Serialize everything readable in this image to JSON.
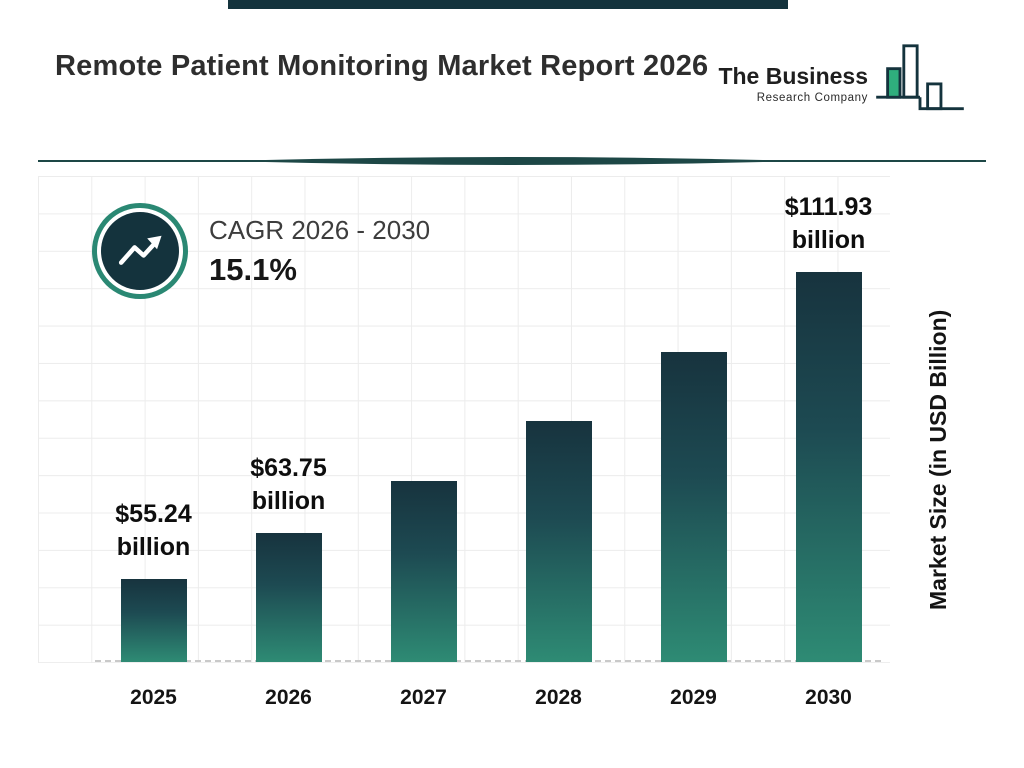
{
  "header": {
    "title": "Remote Patient Monitoring Market Report 2026"
  },
  "logo": {
    "line1": "The Business",
    "line2": "Research Company"
  },
  "cagr": {
    "label": "CAGR 2026 - 2030",
    "value": "15.1%"
  },
  "colors": {
    "navy": "#14333d",
    "teal": "#2a8873",
    "logo_green": "#2fae7d",
    "bar_gradient_top": "#17333e",
    "bar_gradient_bottom": "#2e8b74",
    "grid_line": "#ececec"
  },
  "chart_data": {
    "type": "bar",
    "title": "Remote Patient Monitoring Market Report 2026",
    "categories": [
      "2025",
      "2026",
      "2027",
      "2028",
      "2029",
      "2030"
    ],
    "values": [
      55.24,
      63.75,
      73.37,
      84.45,
      97.21,
      111.93
    ],
    "data_labels": [
      "$55.24 billion",
      "$63.75 billion",
      null,
      null,
      null,
      "$111.93 billion"
    ],
    "xlabel": "",
    "ylabel": "Market Size (in USD Billion)",
    "ylim": [
      40,
      115
    ],
    "grid": true,
    "legend": "none",
    "annotation": "CAGR 2026 - 2030 : 15.1%"
  }
}
